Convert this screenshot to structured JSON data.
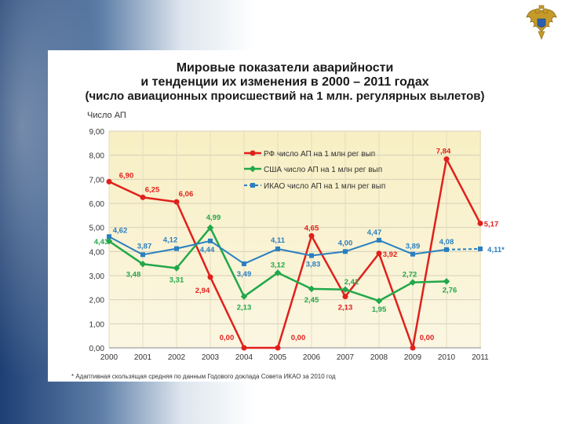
{
  "chart_data": {
    "type": "line",
    "title": [
      "Мировые показатели аварийности",
      "и тенденции их изменения в 2000 – 2011 годах",
      "(число авиационных происшествий на 1 млн. регулярных вылетов)"
    ],
    "ylabel": "Число АП",
    "footnote": "* Адаптивная скользящая средняя по данным Годового доклада Совета ИКАО за 2010 год",
    "categories": [
      "2000",
      "2001",
      "2002",
      "2003",
      "2004",
      "2005",
      "2006",
      "2007",
      "2008",
      "2009",
      "2010",
      "2011"
    ],
    "yticks": [
      "0,00",
      "1,00",
      "2,00",
      "3,00",
      "4,00",
      "5,00",
      "6,00",
      "7,00",
      "8,00",
      "9,00"
    ],
    "ylim": [
      0,
      9
    ],
    "series": [
      {
        "name": "РФ число АП на 1 млн рег вып",
        "color": "#e0201b",
        "marker": "circle",
        "values": [
          6.9,
          6.25,
          6.06,
          2.94,
          0.0,
          0.0,
          4.65,
          2.13,
          3.92,
          0.0,
          7.84,
          5.17
        ],
        "labels": [
          "6,90",
          "6,25",
          "6,06",
          "2,94",
          "0,00",
          "0,00",
          "4,65",
          "2,13",
          "3,92",
          "0,00",
          "7,84",
          "5,17"
        ]
      },
      {
        "name": "США число АП на 1 млн рег вып",
        "color": "#22a84a",
        "marker": "diamond",
        "values": [
          4.43,
          3.48,
          3.31,
          4.99,
          2.13,
          3.12,
          2.45,
          2.42,
          1.95,
          2.72,
          2.76,
          null
        ],
        "labels": [
          "4,43",
          "3,48",
          "3,31",
          "4,99",
          "2,13",
          "3,12",
          "2,45",
          "2,42",
          "1,95",
          "2,72",
          "2,76",
          null
        ]
      },
      {
        "name": "ИКАО число АП на 1 млн рег вып",
        "color": "#2a7fc0",
        "marker": "square",
        "values": [
          4.62,
          3.87,
          4.12,
          4.44,
          3.49,
          4.11,
          3.83,
          4.0,
          4.47,
          3.89,
          4.08,
          4.11
        ],
        "labels": [
          "4,62",
          "3,87",
          "4,12",
          "4,44",
          "3,49",
          "4,11",
          "3,83",
          "4,00",
          "4,47",
          "3,89",
          "4,08",
          "4,11*"
        ]
      }
    ]
  }
}
